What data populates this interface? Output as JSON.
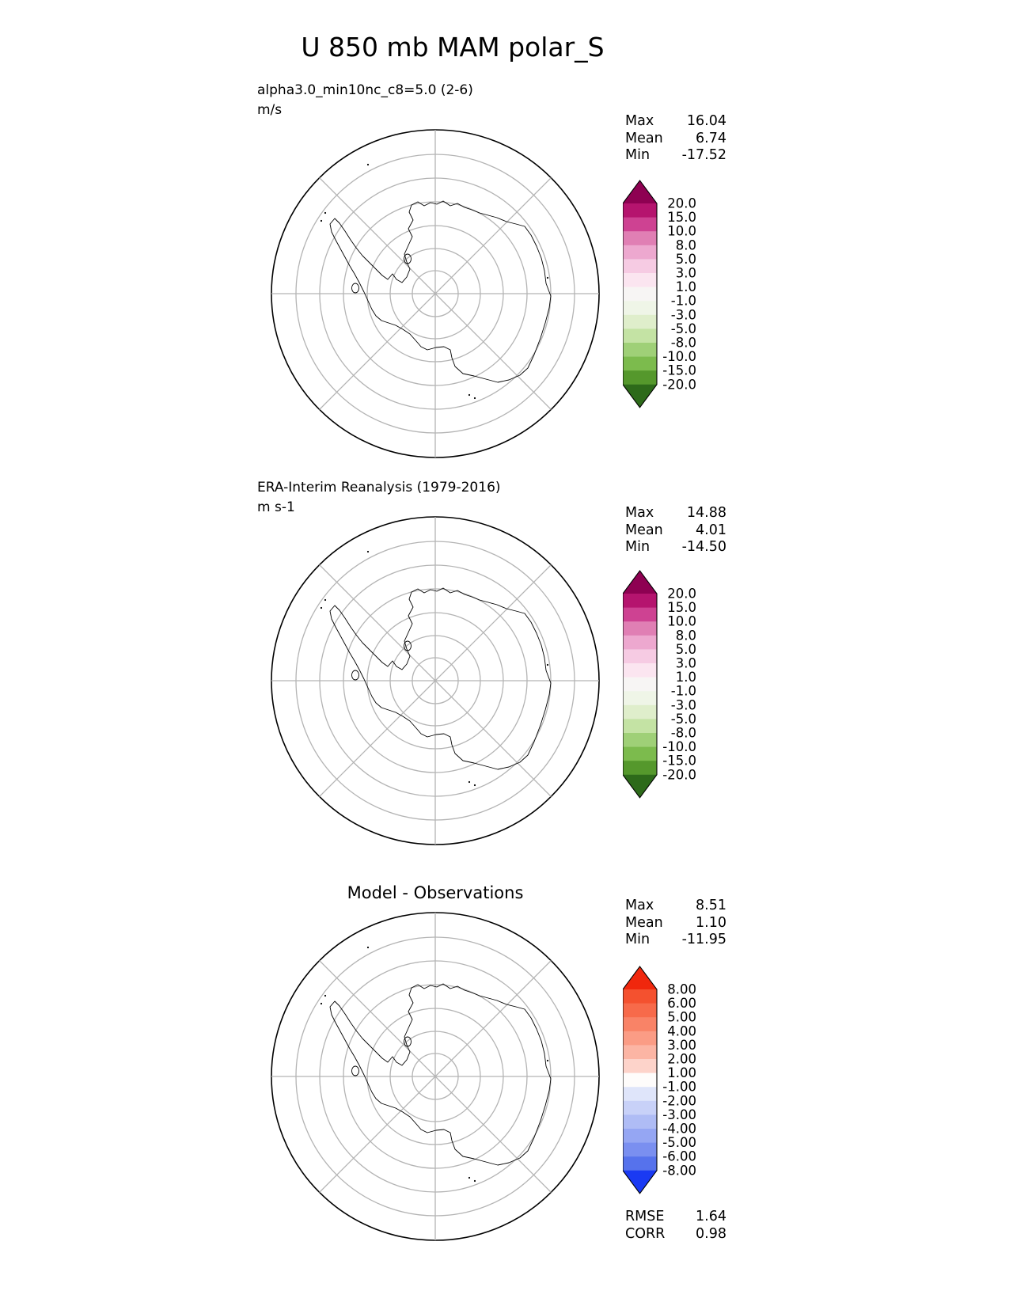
{
  "title": "U 850 mb MAM polar_S",
  "map": {
    "region": "Antarctica (south polar view)",
    "background": "#ffffff",
    "gridline_color": "#b4b4b4",
    "coastline_color": "#000000"
  },
  "panels": [
    {
      "id": "model",
      "subtitle_line1": "alpha3.0_min10nc_c8=5.0 (2-6)",
      "subtitle_line2": "m/s",
      "stats": [
        {
          "label": "Max",
          "value": "16.04"
        },
        {
          "label": "Mean",
          "value": "6.74"
        },
        {
          "label": "Min",
          "value": "-17.52"
        }
      ],
      "colorbar": {
        "levels": [
          "20.0",
          "15.0",
          "10.0",
          "8.0",
          "5.0",
          "3.0",
          "1.0",
          "-1.0",
          "-3.0",
          "-5.0",
          "-8.0",
          "-10.0",
          "-15.0",
          "-20.0"
        ],
        "colors": [
          "#8E0152",
          "#B5146E",
          "#CE4292",
          "#E07FB4",
          "#EDA8CF",
          "#F6CBE3",
          "#FBE5F0",
          "#F7F5F4",
          "#EFF5E7",
          "#DFEECB",
          "#C4E3A4",
          "#9FD077",
          "#7CBB4D",
          "#55982C",
          "#2D6A1A"
        ]
      }
    },
    {
      "id": "observations",
      "subtitle_line1": "ERA-Interim Reanalysis (1979-2016)",
      "subtitle_line2": "m s-1",
      "stats": [
        {
          "label": "Max",
          "value": "14.88"
        },
        {
          "label": "Mean",
          "value": "4.01"
        },
        {
          "label": "Min",
          "value": "-14.50"
        }
      ],
      "colorbar": {
        "levels": [
          "20.0",
          "15.0",
          "10.0",
          "8.0",
          "5.0",
          "3.0",
          "1.0",
          "-1.0",
          "-3.0",
          "-5.0",
          "-8.0",
          "-10.0",
          "-15.0",
          "-20.0"
        ],
        "colors": [
          "#8E0152",
          "#B5146E",
          "#CE4292",
          "#E07FB4",
          "#EDA8CF",
          "#F6CBE3",
          "#FBE5F0",
          "#F7F5F4",
          "#EFF5E7",
          "#DFEECB",
          "#C4E3A4",
          "#9FD077",
          "#7CBB4D",
          "#55982C",
          "#2D6A1A"
        ]
      }
    },
    {
      "id": "difference",
      "panel_title": "Model - Observations",
      "stats": [
        {
          "label": "Max",
          "value": "8.51"
        },
        {
          "label": "Mean",
          "value": "1.10"
        },
        {
          "label": "Min",
          "value": "-11.95"
        }
      ],
      "colorbar": {
        "levels": [
          "8.00",
          "6.00",
          "5.00",
          "4.00",
          "3.00",
          "2.00",
          "1.00",
          "-1.00",
          "-2.00",
          "-3.00",
          "-4.00",
          "-5.00",
          "-6.00",
          "-8.00"
        ],
        "colors": [
          "#F0270D",
          "#F4512F",
          "#F76A4A",
          "#F98367",
          "#FB9C85",
          "#FCB5A4",
          "#FDD3CA",
          "#FEFCFB",
          "#DFE5FA",
          "#C8D1F8",
          "#AFBCF5",
          "#95A6F3",
          "#7A8FF0",
          "#5672EC",
          "#1A3AF3"
        ]
      },
      "metrics": [
        {
          "label": "RMSE",
          "value": "1.64"
        },
        {
          "label": "CORR",
          "value": "0.98"
        }
      ]
    }
  ],
  "chart_data": [
    {
      "type": "heatmap",
      "projection": "south polar stereographic (Antarctica, outer boundary ~55S, gridlines every 5 deg lat / 45 deg lon)",
      "title": "alpha3.0_min10nc_c8=5.0 (2-6)",
      "units": "m/s",
      "stats": {
        "max": 16.04,
        "mean": 6.74,
        "min": -17.52
      },
      "colorbar_levels": [
        20.0,
        15.0,
        10.0,
        8.0,
        5.0,
        3.0,
        1.0,
        -1.0,
        -3.0,
        -5.0,
        -8.0,
        -10.0,
        -15.0,
        -20.0
      ],
      "colormap": "pink-white-green (PiYG), arrow extensions both ends",
      "legend_position": "right"
    },
    {
      "type": "heatmap",
      "projection": "south polar stereographic (Antarctica, outer boundary ~55S, gridlines every 5 deg lat / 45 deg lon)",
      "title": "ERA-Interim Reanalysis (1979-2016)",
      "units": "m s-1",
      "stats": {
        "max": 14.88,
        "mean": 4.01,
        "min": -14.5
      },
      "colorbar_levels": [
        20.0,
        15.0,
        10.0,
        8.0,
        5.0,
        3.0,
        1.0,
        -1.0,
        -3.0,
        -5.0,
        -8.0,
        -10.0,
        -15.0,
        -20.0
      ],
      "colormap": "pink-white-green (PiYG), arrow extensions both ends",
      "legend_position": "right"
    },
    {
      "type": "heatmap",
      "projection": "south polar stereographic (Antarctica, outer boundary ~55S, gridlines every 5 deg lat / 45 deg lon)",
      "title": "Model - Observations",
      "units": "m/s",
      "stats": {
        "max": 8.51,
        "mean": 1.1,
        "min": -11.95
      },
      "rmse": 1.64,
      "corr": 0.98,
      "colorbar_levels": [
        8.0,
        6.0,
        5.0,
        4.0,
        3.0,
        2.0,
        1.0,
        -1.0,
        -2.0,
        -3.0,
        -4.0,
        -5.0,
        -6.0,
        -8.0
      ],
      "colormap": "red-white-blue, arrow extensions both ends",
      "legend_position": "right"
    }
  ]
}
